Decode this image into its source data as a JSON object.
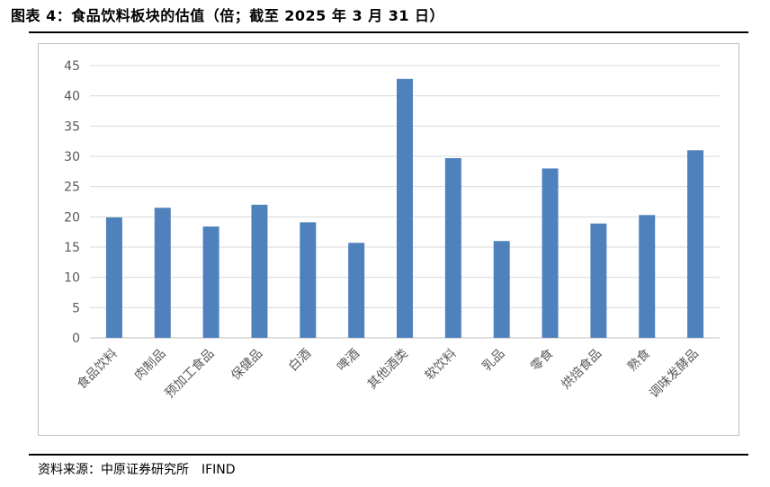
{
  "title": "图表 4：食品饮料板块的估值（倍；截至 2025 年 3 月 31 日）",
  "source": {
    "label": "资料来源：中原证券研究所",
    "provider": "IFIND"
  },
  "colors": {
    "bar": "#4f81bd",
    "grid": "#d9d9d9",
    "axis": "#bfbfbf",
    "text": "#595959"
  },
  "chart_data": {
    "type": "bar",
    "categories": [
      "食品饮料",
      "肉制品",
      "预加工食品",
      "保健品",
      "白酒",
      "啤酒",
      "其他酒类",
      "软饮料",
      "乳品",
      "零食",
      "烘焙食品",
      "熟食",
      "调味发酵品"
    ],
    "values": [
      19.9,
      21.5,
      18.4,
      22.0,
      19.1,
      15.7,
      42.8,
      29.7,
      16.0,
      28.0,
      18.9,
      20.3,
      31.0
    ],
    "yticks": [
      "0",
      "5",
      "10",
      "15",
      "20",
      "25",
      "30",
      "35",
      "40",
      "45"
    ],
    "ylim": [
      0,
      45
    ],
    "grid": true,
    "legend": "none"
  }
}
